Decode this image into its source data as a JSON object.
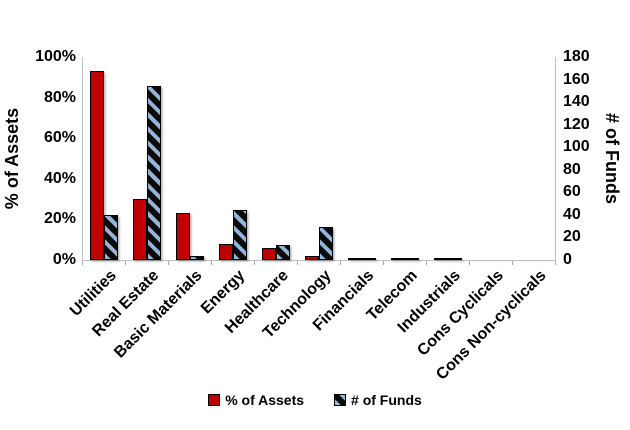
{
  "colors": {
    "assets_bar": "#C00000",
    "funds_stripe": "#95B3D7",
    "funds_stripe_bg": "#0A0A0A",
    "axis_line": "#BFBFBF",
    "text": "#000000",
    "background": "#FFFFFF"
  },
  "legend": {
    "items": [
      "% of Assets",
      "# of Funds"
    ]
  },
  "chart_data": {
    "type": "bar",
    "title": "",
    "categories": [
      "Utilities",
      "Real Estate",
      "Basic Materials",
      "Energy",
      "Healthcare",
      "Technology",
      "Financials",
      "Telecom",
      "Industrials",
      "Cons Cyclicals",
      "Cons Non-cyclicals"
    ],
    "series": [
      {
        "name": "% of Assets",
        "axis": "left",
        "style": "solid-red",
        "values": [
          93,
          30,
          23,
          8,
          6,
          2,
          1,
          1,
          1,
          0,
          0
        ]
      },
      {
        "name": "# of Funds",
        "axis": "right",
        "style": "hatched-blue-on-black",
        "values": [
          40,
          154,
          4,
          44,
          13,
          29,
          2,
          2,
          2,
          0,
          0
        ]
      }
    ],
    "left_axis": {
      "label": "% of Assets",
      "min": 0,
      "max": 100,
      "step": 20,
      "ticks": [
        "0%",
        "20%",
        "40%",
        "60%",
        "80%",
        "100%"
      ]
    },
    "right_axis": {
      "label": "# of Funds",
      "min": 0,
      "max": 180,
      "step": 20,
      "ticks": [
        "0",
        "20",
        "40",
        "60",
        "80",
        "100",
        "120",
        "140",
        "160",
        "180"
      ]
    },
    "grid": false,
    "legend_position": "bottom",
    "category_label_rotation_deg": 45
  }
}
